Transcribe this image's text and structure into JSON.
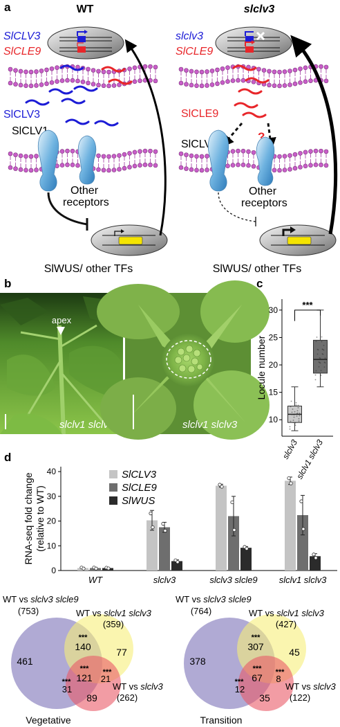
{
  "panel_a": {
    "letter": "a",
    "wt": {
      "title": "WT",
      "gene1": "SlCLV3",
      "gene2": "SlCLE9",
      "peptide": "SlCLV3",
      "receptor1": "SlCLV1",
      "receptor2_line1": "Other",
      "receptor2_line2": "receptors",
      "target": "SlWUS/ other TFs"
    },
    "mutant": {
      "title": "slclv3",
      "gene1": "slclv3",
      "gene2": "SlCLE9",
      "peptide": "SlCLE9",
      "question": "?",
      "receptor1": "SlCLV1",
      "receptor2_line1": "Other",
      "receptor2_line2": "receptors",
      "target": "SlWUS/ other TFs"
    },
    "colors": {
      "clv3": "#1c1cd6",
      "cle9": "#e8262a",
      "wus": "#f5e400",
      "receptor": "#6fb3e0"
    }
  },
  "panel_b": {
    "letter": "b",
    "left_label": "slclv1 slclv3",
    "apex_label": "apex",
    "right_label": "slclv1 slclv3"
  },
  "panel_c": {
    "letter": "c",
    "chart_data": {
      "type": "box",
      "ylabel": "Locule number",
      "yticks": [
        10,
        15,
        20,
        25,
        30
      ],
      "ylim": [
        7,
        32
      ],
      "categories": [
        "slclv3",
        "slclv1 slclv3"
      ],
      "boxes": [
        {
          "category": "slclv3",
          "min": 8,
          "q1": 9.5,
          "median": 11,
          "q3": 12.5,
          "max": 16
        },
        {
          "category": "slclv1 slclv3",
          "min": 16,
          "q1": 18.5,
          "median": 21,
          "q3": 24.5,
          "max": 30
        }
      ],
      "significance": "***"
    }
  },
  "panel_d": {
    "letter": "d",
    "chart_data": {
      "type": "bar",
      "ylabel_line1": "RNA-seq fold change",
      "ylabel_line2": "(relative to WT)",
      "yticks": [
        0,
        10,
        20,
        30,
        40
      ],
      "ylim": [
        0,
        42
      ],
      "categories": [
        "WT",
        "slclv3",
        "slclv3 slcle9",
        "slclv1 slclv3"
      ],
      "series": [
        {
          "name": "SlCLV3",
          "color": "#c4c4c4",
          "values": [
            1,
            20.3,
            34.3,
            36.3
          ],
          "errors": [
            0.3,
            4,
            0.6,
            1.5
          ]
        },
        {
          "name": "SlCLE9",
          "color": "#6e6e6e",
          "values": [
            1,
            17.5,
            22,
            22.4
          ],
          "errors": [
            0.3,
            2,
            8,
            8
          ]
        },
        {
          "name": "SlWUS",
          "color": "#2b2b2b",
          "values": [
            1,
            3.8,
            9.2,
            5.8
          ],
          "errors": [
            0.2,
            0.5,
            0.5,
            1
          ]
        }
      ]
    }
  },
  "venn": {
    "vegetative": {
      "caption": "Vegetative",
      "set_a_label": "WT vs slclv3 slcle9",
      "set_a_count": "(753)",
      "set_b_label": "WT vs slclv1 slclv3",
      "set_b_count": "(359)",
      "set_c_label": "WT vs slclv3",
      "set_c_count": "(262)",
      "only_a": "461",
      "only_b": "77",
      "only_c": "89",
      "ab": "140",
      "ac": "31",
      "bc": "21",
      "abc": "121",
      "sig": "***"
    },
    "transition": {
      "caption": "Transition",
      "set_a_label": "WT vs slclv3 slcle9",
      "set_a_count": "(764)",
      "set_b_label": "WT vs slclv1 slclv3",
      "set_b_count": "(427)",
      "set_c_label": "WT vs slclv3",
      "set_c_count": "(122)",
      "only_a": "378",
      "only_b": "45",
      "only_c": "35",
      "ab": "307",
      "ac": "12",
      "bc": "8",
      "abc": "67",
      "sig": "***"
    },
    "colors": {
      "a": "#7b72b8",
      "b": "#f7ef7a",
      "c": "#ea5a68"
    }
  }
}
